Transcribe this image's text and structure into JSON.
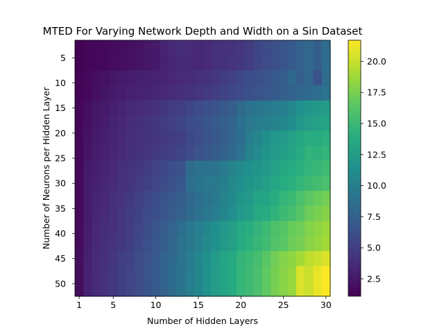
{
  "chart_data": {
    "type": "heatmap",
    "title": "MTED For Varying Network Depth and Width on a Sin Dataset",
    "xlabel": "Number of Hidden Layers",
    "ylabel": "Number of Neurons per Hidden Layer",
    "x_ticks": [
      "1",
      "5",
      "10",
      "15",
      "20",
      "25",
      "30"
    ],
    "y_ticks": [
      "5",
      "10",
      "15",
      "20",
      "25",
      "30",
      "35",
      "40",
      "45",
      "50"
    ],
    "colorbar_ticks": [
      "2.5",
      "5.0",
      "7.5",
      "10.0",
      "12.5",
      "15.0",
      "17.5",
      "20.0"
    ],
    "colormap": "viridis",
    "color_range": [
      1.1,
      21.7
    ],
    "x": [
      1,
      2,
      3,
      4,
      5,
      6,
      7,
      8,
      9,
      10,
      11,
      12,
      13,
      14,
      15,
      16,
      17,
      18,
      19,
      20,
      21,
      22,
      23,
      24,
      25,
      26,
      27,
      28,
      29,
      30
    ],
    "y": [
      3,
      6,
      9,
      12,
      15,
      18,
      21,
      24,
      27,
      30,
      33,
      36,
      39,
      42,
      45,
      48,
      51
    ],
    "values": [
      [
        1.2,
        1.4,
        1.5,
        1.6,
        1.7,
        1.9,
        2.0,
        2.2,
        2.4,
        2.6,
        3.2,
        3.5,
        3.8,
        3.6,
        3.4,
        3.6,
        3.9,
        4.0,
        4.2,
        4.4,
        4.8,
        5.5,
        5.8,
        6.2,
        6.6,
        7.0,
        7.6,
        8.2,
        7.4,
        8.6
      ],
      [
        1.2,
        1.4,
        1.5,
        1.6,
        1.8,
        1.9,
        2.0,
        2.2,
        2.4,
        2.6,
        3.1,
        3.3,
        3.6,
        3.5,
        3.4,
        3.6,
        3.9,
        4.1,
        4.3,
        4.5,
        4.8,
        5.5,
        5.8,
        6.2,
        6.6,
        7.0,
        7.6,
        8.2,
        7.4,
        8.6
      ],
      [
        1.3,
        1.6,
        1.9,
        2.1,
        2.4,
        2.6,
        2.7,
        2.9,
        3.0,
        3.1,
        3.2,
        3.4,
        3.6,
        3.7,
        3.9,
        4.1,
        4.4,
        4.8,
        5.1,
        5.6,
        6.0,
        6.2,
        6.5,
        6.9,
        7.1,
        8.1,
        7.3,
        7.9,
        6.4,
        8.5
      ],
      [
        1.3,
        1.6,
        2.0,
        2.3,
        2.6,
        2.8,
        3.0,
        3.1,
        3.2,
        3.3,
        3.5,
        3.7,
        3.9,
        4.1,
        4.3,
        4.6,
        4.9,
        5.3,
        5.6,
        5.9,
        6.2,
        6.5,
        6.8,
        7.0,
        7.3,
        7.6,
        8.0,
        8.3,
        8.6,
        9.0
      ],
      [
        1.4,
        1.9,
        2.4,
        2.6,
        2.9,
        3.2,
        3.5,
        3.6,
        3.8,
        4.2,
        4.5,
        4.8,
        5.0,
        5.5,
        5.9,
        6.2,
        6.5,
        6.9,
        7.3,
        8.3,
        8.9,
        9.2,
        9.5,
        9.7,
        9.9,
        10.5,
        11.5,
        11.9,
        12.2,
        12.5
      ],
      [
        1.4,
        2.0,
        2.5,
        2.8,
        3.1,
        3.4,
        3.7,
        3.9,
        4.1,
        4.5,
        4.8,
        5.1,
        5.4,
        5.8,
        6.2,
        6.6,
        7.0,
        7.4,
        7.8,
        8.7,
        9.3,
        9.7,
        10.0,
        10.3,
        10.6,
        11.2,
        12.1,
        12.5,
        12.8,
        13.1
      ],
      [
        1.5,
        2.2,
        2.6,
        2.9,
        3.2,
        3.5,
        3.8,
        4.0,
        4.2,
        4.4,
        4.6,
        4.8,
        5.1,
        5.6,
        6.0,
        6.5,
        6.8,
        7.2,
        7.8,
        8.6,
        9.8,
        10.5,
        11.4,
        11.9,
        12.3,
        12.8,
        13.4,
        14.1,
        13.9,
        14.2
      ],
      [
        1.5,
        2.3,
        2.7,
        3.0,
        3.3,
        3.6,
        3.9,
        4.1,
        4.3,
        4.6,
        4.8,
        5.1,
        5.4,
        5.9,
        6.3,
        6.8,
        7.1,
        7.6,
        8.2,
        9.0,
        10.2,
        10.9,
        11.8,
        12.3,
        12.7,
        13.2,
        13.8,
        14.5,
        14.3,
        14.6
      ],
      [
        1.6,
        2.6,
        2.9,
        3.2,
        3.5,
        3.9,
        4.2,
        4.5,
        4.8,
        5.2,
        5.6,
        6.1,
        6.4,
        8.4,
        8.8,
        8.9,
        9.1,
        9.6,
        10.3,
        10.9,
        11.4,
        11.8,
        12.2,
        12.9,
        13.5,
        13.8,
        14.2,
        14.6,
        14.9,
        15.2
      ],
      [
        1.6,
        2.7,
        3.0,
        3.3,
        3.6,
        4.0,
        4.3,
        4.7,
        5.0,
        5.4,
        5.8,
        6.3,
        6.7,
        8.7,
        9.1,
        9.3,
        9.5,
        10.0,
        10.7,
        11.3,
        11.8,
        12.2,
        12.6,
        13.3,
        13.9,
        14.2,
        14.7,
        15.1,
        15.4,
        15.7
      ],
      [
        1.6,
        2.7,
        3.2,
        3.5,
        3.9,
        4.2,
        4.6,
        5.1,
        5.6,
        6.0,
        6.4,
        6.9,
        7.3,
        8.0,
        8.6,
        9.0,
        9.4,
        10.2,
        10.9,
        11.8,
        12.2,
        13.1,
        13.3,
        14.0,
        14.6,
        15.0,
        15.8,
        16.5,
        16.9,
        17.3
      ],
      [
        1.6,
        2.8,
        3.3,
        3.6,
        4.0,
        4.4,
        4.8,
        5.3,
        5.8,
        6.2,
        6.6,
        7.1,
        7.6,
        8.3,
        8.9,
        9.3,
        9.8,
        10.6,
        11.3,
        12.2,
        12.7,
        13.6,
        13.8,
        14.5,
        15.1,
        15.5,
        16.3,
        17.1,
        17.5,
        17.9
      ],
      [
        1.7,
        2.8,
        3.4,
        3.8,
        4.0,
        4.4,
        4.8,
        5.4,
        6.0,
        6.6,
        7.1,
        7.8,
        8.6,
        9.2,
        9.9,
        10.6,
        11.3,
        12.1,
        12.6,
        13.5,
        14.1,
        14.6,
        15.1,
        15.8,
        16.2,
        16.9,
        17.2,
        17.8,
        18.2,
        18.6
      ],
      [
        1.7,
        2.9,
        3.5,
        3.9,
        4.2,
        4.6,
        5.0,
        5.6,
        6.2,
        6.8,
        7.3,
        8.0,
        8.8,
        9.4,
        10.1,
        10.8,
        11.5,
        12.3,
        12.8,
        13.7,
        14.3,
        14.8,
        15.3,
        16.0,
        16.4,
        17.1,
        17.4,
        18.0,
        18.4,
        18.8
      ],
      [
        1.8,
        3.0,
        3.6,
        4.0,
        4.4,
        4.9,
        5.3,
        5.8,
        6.3,
        6.9,
        7.6,
        8.3,
        9.0,
        9.7,
        10.5,
        11.4,
        12.4,
        13.1,
        13.6,
        14.6,
        15.0,
        15.5,
        16.4,
        17.2,
        17.8,
        18.2,
        18.9,
        19.7,
        20.1,
        20.6
      ],
      [
        1.8,
        3.1,
        3.7,
        4.1,
        4.5,
        5.0,
        5.4,
        5.9,
        6.4,
        7.0,
        7.7,
        8.4,
        9.1,
        9.8,
        10.6,
        11.5,
        12.5,
        13.2,
        13.7,
        14.7,
        15.2,
        15.7,
        16.6,
        17.4,
        18.0,
        18.5,
        20.6,
        20.1,
        21.1,
        21.6
      ],
      [
        1.8,
        3.1,
        3.7,
        4.1,
        4.5,
        5.0,
        5.4,
        5.9,
        6.4,
        7.0,
        7.7,
        8.4,
        9.1,
        9.8,
        10.6,
        11.5,
        12.5,
        13.2,
        13.7,
        14.7,
        15.2,
        15.7,
        16.6,
        17.4,
        18.0,
        18.5,
        20.6,
        20.1,
        21.1,
        21.7
      ]
    ]
  }
}
